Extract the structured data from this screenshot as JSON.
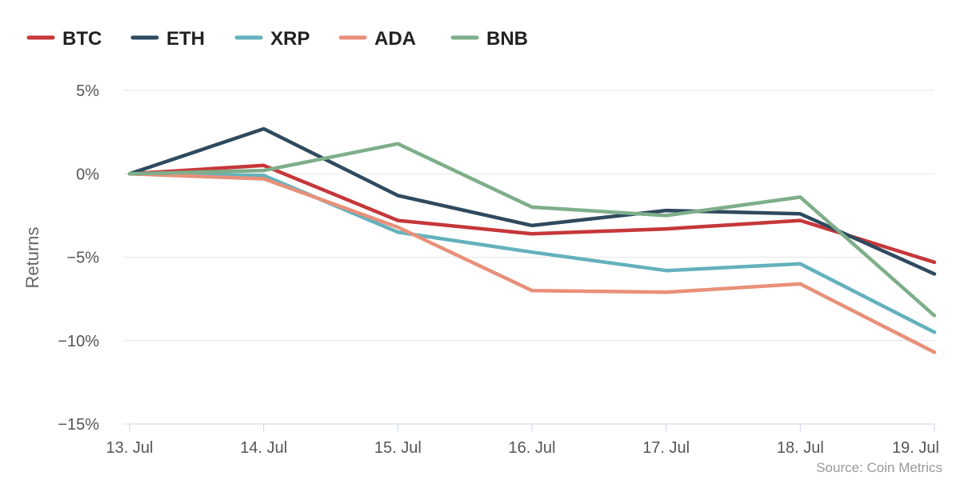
{
  "chart_data": {
    "type": "line",
    "title": "",
    "xlabel": "",
    "ylabel": "Returns",
    "categories": [
      "13. Jul",
      "14. Jul",
      "15. Jul",
      "16. Jul",
      "17. Jul",
      "18. Jul",
      "19. Jul"
    ],
    "ylim": [
      -15,
      5
    ],
    "yticks": [
      5,
      0,
      -5,
      -10,
      -15
    ],
    "ytick_labels": [
      "5%",
      "0%",
      "−5%",
      "−10%",
      "−15%"
    ],
    "grid": true,
    "legend_position": "top-left",
    "source": "Source: Coin Metrics",
    "series": [
      {
        "name": "BTC",
        "color": "#c6373a",
        "values": [
          0,
          0.5,
          -2.8,
          -3.6,
          -3.3,
          -2.8,
          -5.3
        ]
      },
      {
        "name": "ETH",
        "color": "#2f4a5f",
        "values": [
          0,
          2.7,
          -1.3,
          -3.1,
          -2.2,
          -2.4,
          -6.0
        ]
      },
      {
        "name": "XRP",
        "color": "#63b1bc",
        "values": [
          0,
          -0.1,
          -3.5,
          -4.7,
          -5.8,
          -5.4,
          -9.5
        ]
      },
      {
        "name": "ADA",
        "color": "#e8907a",
        "values": [
          0,
          -0.3,
          -3.2,
          -7.0,
          -7.1,
          -6.6,
          -10.7
        ]
      },
      {
        "name": "BNB",
        "color": "#7eae8a",
        "values": [
          0,
          0.2,
          1.8,
          -2.0,
          -2.5,
          -1.4,
          -8.5
        ]
      }
    ]
  }
}
